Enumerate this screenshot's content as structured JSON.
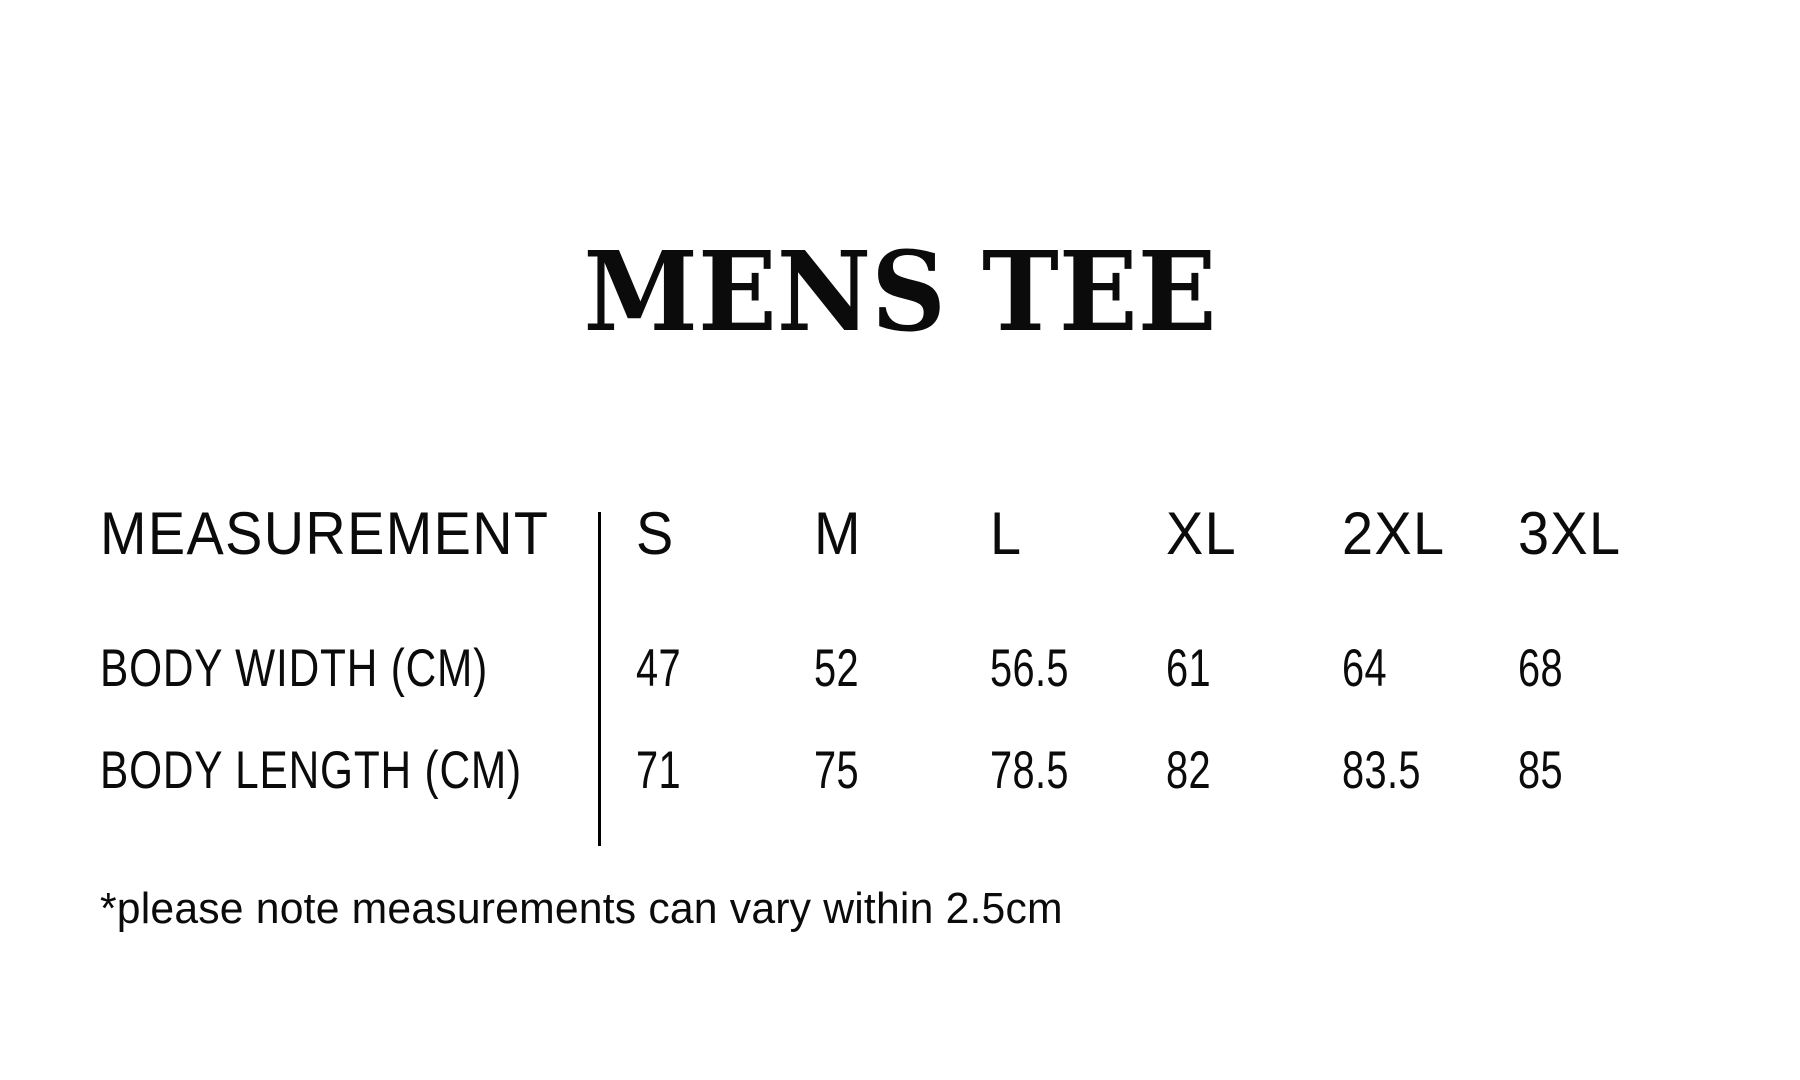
{
  "page": {
    "background_color": "#ffffff",
    "text_color": "#0b0b0b"
  },
  "title": "MENS TEE",
  "size_chart": {
    "header_label": "MEASUREMENT",
    "sizes": [
      "S",
      "M",
      "L",
      "XL",
      "2XL",
      "3XL"
    ],
    "rows": [
      {
        "label": "BODY WIDTH (CM)",
        "values": [
          "47",
          "52",
          "56.5",
          "61",
          "64",
          "68"
        ]
      },
      {
        "label": "BODY LENGTH (CM)",
        "values": [
          "71",
          "75",
          "78.5",
          "82",
          "83.5",
          "85"
        ]
      }
    ]
  },
  "footnote": "*please note measurements can vary within 2.5cm",
  "chart_data": {
    "type": "table",
    "title": "MENS TEE",
    "columns": [
      "MEASUREMENT",
      "S",
      "M",
      "L",
      "XL",
      "2XL",
      "3XL"
    ],
    "rows": [
      [
        "BODY WIDTH (CM)",
        47,
        52,
        56.5,
        61,
        64,
        68
      ],
      [
        "BODY LENGTH (CM)",
        71,
        75,
        78.5,
        82,
        83.5,
        85
      ]
    ],
    "units": "cm",
    "footnote": "*please note measurements can vary within 2.5cm",
    "layout": "header row of sizes, left label column, thin vertical divider between label column and size columns"
  }
}
